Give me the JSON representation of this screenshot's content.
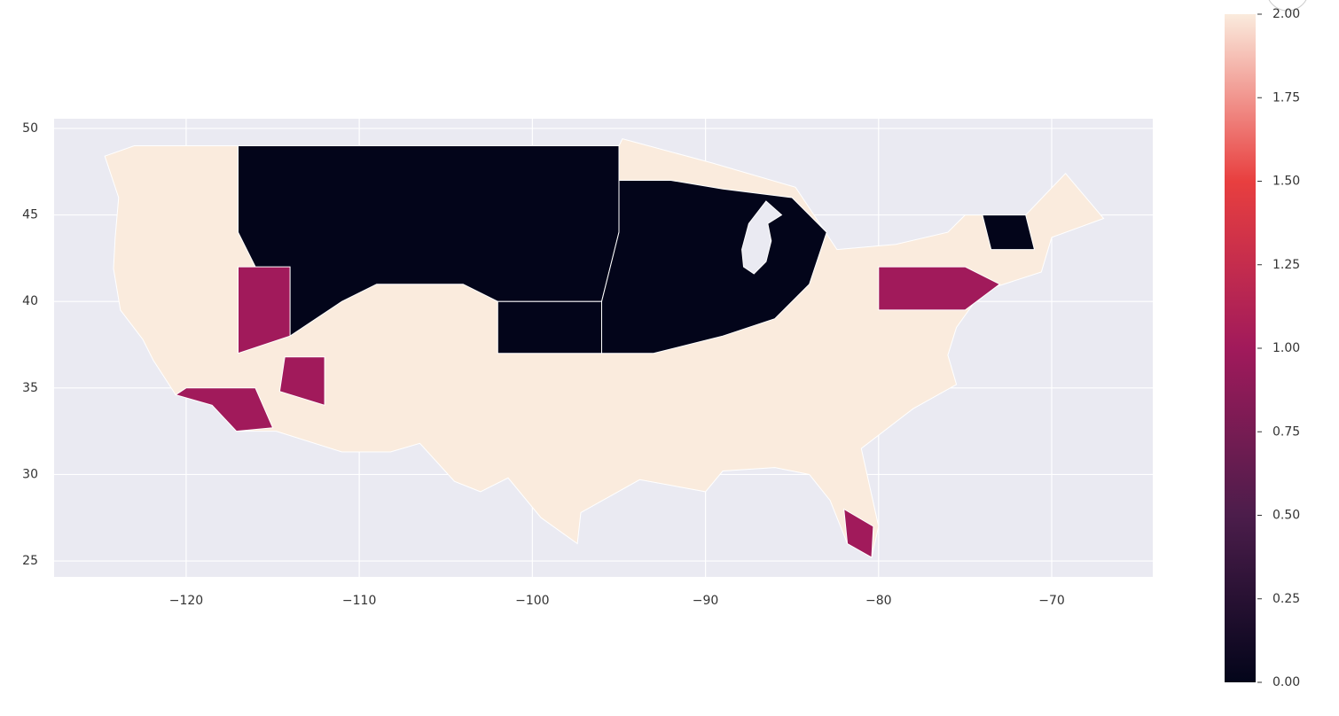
{
  "chart_data": {
    "type": "choropleth",
    "xlim": [
      -127.63,
      -64.16
    ],
    "ylim": [
      24.08,
      50.56
    ],
    "xticks": [
      {
        "value": -120,
        "label": "−120"
      },
      {
        "value": -110,
        "label": "−110"
      },
      {
        "value": -100,
        "label": "−100"
      },
      {
        "value": -90,
        "label": "−90"
      },
      {
        "value": -80,
        "label": "−80"
      },
      {
        "value": -70,
        "label": "−70"
      }
    ],
    "yticks": [
      25,
      30,
      35,
      40,
      45,
      50
    ],
    "grid": true,
    "colormap": [
      "#03051a",
      "#4c1d4b",
      "#a11a5b",
      "#e83f3f",
      "#faebdd"
    ],
    "clim": [
      0,
      2
    ],
    "cticks": [
      {
        "value": 0,
        "label": "0.00"
      },
      {
        "value": 0.25,
        "label": "0.25"
      },
      {
        "value": 0.5,
        "label": "0.50"
      },
      {
        "value": 0.75,
        "label": "0.75"
      },
      {
        "value": 1,
        "label": "1.00"
      },
      {
        "value": 1.25,
        "label": "1.25"
      },
      {
        "value": 1.5,
        "label": "1.50"
      },
      {
        "value": 1.75,
        "label": "1.75"
      },
      {
        "value": 2,
        "label": "2.00"
      }
    ],
    "regions": [
      {
        "value": 2,
        "polygon": [
          [
            -124.7,
            48.4
          ],
          [
            -123,
            49
          ],
          [
            -95,
            49
          ],
          [
            -94.8,
            49.4
          ],
          [
            -89.6,
            48
          ],
          [
            -84.8,
            46.6
          ],
          [
            -82.4,
            43
          ],
          [
            -79,
            43.3
          ],
          [
            -76,
            44
          ],
          [
            -75,
            45
          ],
          [
            -71.5,
            45
          ],
          [
            -69.2,
            47.4
          ],
          [
            -67,
            44.8
          ],
          [
            -70,
            43.7
          ],
          [
            -70.6,
            41.7
          ],
          [
            -74,
            40.6
          ],
          [
            -75.5,
            38.5
          ],
          [
            -76,
            36.9
          ],
          [
            -75.5,
            35.2
          ],
          [
            -78,
            33.8
          ],
          [
            -81,
            31.5
          ],
          [
            -80,
            27
          ],
          [
            -80.4,
            25.2
          ],
          [
            -81.8,
            26
          ],
          [
            -82.8,
            28.5
          ],
          [
            -84,
            30
          ],
          [
            -86,
            30.4
          ],
          [
            -89,
            30.2
          ],
          [
            -90,
            29
          ],
          [
            -93.8,
            29.7
          ],
          [
            -97.2,
            27.8
          ],
          [
            -97.4,
            26
          ],
          [
            -99.5,
            27.5
          ],
          [
            -101.4,
            29.8
          ],
          [
            -103,
            29
          ],
          [
            -104.5,
            29.6
          ],
          [
            -106.5,
            31.8
          ],
          [
            -108.2,
            31.3
          ],
          [
            -111,
            31.3
          ],
          [
            -114.8,
            32.5
          ],
          [
            -117.1,
            32.5
          ],
          [
            -118.5,
            34
          ],
          [
            -120.6,
            34.6
          ],
          [
            -121.9,
            36.6
          ],
          [
            -122.5,
            37.8
          ],
          [
            -123.8,
            39.5
          ],
          [
            -124.2,
            41.9
          ],
          [
            -124.1,
            43.7
          ],
          [
            -123.9,
            46
          ],
          [
            -124.7,
            48.4
          ]
        ]
      },
      {
        "value": 0,
        "polygon": [
          [
            -117,
            49
          ],
          [
            -95,
            49
          ],
          [
            -95,
            44
          ],
          [
            -96,
            40
          ],
          [
            -102,
            40
          ],
          [
            -104,
            41
          ],
          [
            -109,
            41
          ],
          [
            -111,
            40
          ],
          [
            -114,
            38
          ],
          [
            -115,
            40
          ],
          [
            -117,
            44
          ]
        ]
      },
      {
        "value": 0,
        "polygon": [
          [
            -95,
            47
          ],
          [
            -92,
            47
          ],
          [
            -89,
            46.5
          ],
          [
            -85,
            46
          ],
          [
            -83,
            44
          ],
          [
            -84,
            41
          ],
          [
            -86,
            39
          ],
          [
            -89,
            38
          ],
          [
            -93,
            37
          ],
          [
            -96,
            37
          ],
          [
            -96,
            40
          ],
          [
            -95,
            44
          ]
        ]
      },
      {
        "value": 0,
        "polygon": [
          [
            -102,
            40
          ],
          [
            -96,
            40
          ],
          [
            -96,
            37
          ],
          [
            -102,
            37
          ]
        ]
      },
      {
        "value": 1,
        "polygon": [
          [
            -117,
            42
          ],
          [
            -114,
            42
          ],
          [
            -114,
            38
          ],
          [
            -117,
            37
          ]
        ]
      },
      {
        "value": 1,
        "polygon": [
          [
            -114.3,
            36.8
          ],
          [
            -112,
            36.8
          ],
          [
            -112,
            34
          ],
          [
            -114.6,
            34.8
          ]
        ]
      },
      {
        "value": 1,
        "polygon": [
          [
            -120,
            35
          ],
          [
            -116,
            35
          ],
          [
            -115,
            32.7
          ],
          [
            -117.1,
            32.5
          ],
          [
            -118.5,
            34
          ],
          [
            -120.6,
            34.6
          ]
        ]
      },
      {
        "value": 1,
        "polygon": [
          [
            -82,
            28
          ],
          [
            -80.3,
            27
          ],
          [
            -80.4,
            25.2
          ],
          [
            -81.8,
            26
          ]
        ]
      },
      {
        "value": 1,
        "polygon": [
          [
            -80,
            42
          ],
          [
            -75,
            42
          ],
          [
            -73,
            41
          ],
          [
            -75,
            39.5
          ],
          [
            -80,
            39.5
          ]
        ]
      },
      {
        "value": 0,
        "polygon": [
          [
            -74,
            45
          ],
          [
            -71.5,
            45
          ],
          [
            -71,
            43
          ],
          [
            -73.5,
            43
          ]
        ]
      }
    ]
  }
}
